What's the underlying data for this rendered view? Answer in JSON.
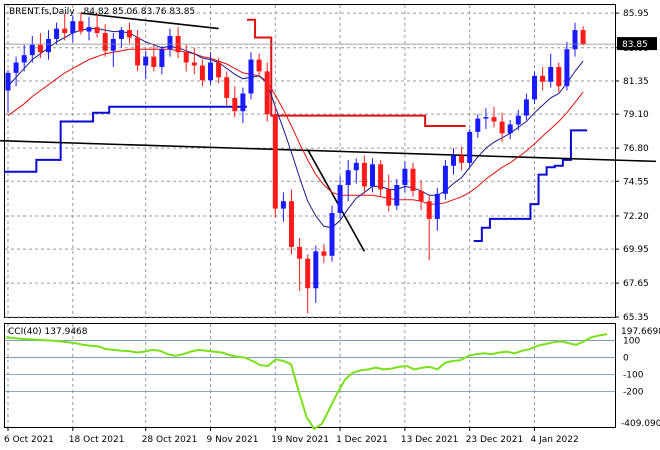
{
  "header": {
    "symbol": "BRENT.fs,Daily",
    "ohlc": "84.82 85.06 83.76 83.85"
  },
  "indicator": {
    "label": "CCI(40) 137.9468",
    "max_label": "197.6698",
    "min_label": "-409.090"
  },
  "colors": {
    "bull": "#1a1aff",
    "bear": "#ff1a1a",
    "ma_fast": "#1a1a8c",
    "ma_slow": "#e01010",
    "stop": "#0a0ad0",
    "cci": "#7ae01a",
    "trend": "#000000",
    "price_marker": "#000000"
  },
  "chart_data": [
    {
      "type": "candlestick",
      "x_labels": [
        "6 Oct 2021",
        "18 Oct 2021",
        "28 Oct 2021",
        "9 Nov 2021",
        "19 Nov 2021",
        "1 Dec 2021",
        "13 Dec 2021",
        "23 Dec 2021",
        "4 Jan 2022"
      ],
      "y_ticks": [
        "85.95",
        "83.60",
        "81.35",
        "79.10",
        "76.80",
        "74.55",
        "72.20",
        "69.95",
        "67.65",
        "65.35"
      ],
      "ylim": [
        65.35,
        86.5
      ],
      "current_price": "83.85",
      "candles": [
        {
          "o": 80.7,
          "h": 82.1,
          "l": 79.2,
          "c": 81.9
        },
        {
          "o": 81.9,
          "h": 83.0,
          "l": 81.0,
          "c": 82.6
        },
        {
          "o": 82.6,
          "h": 83.8,
          "l": 82.0,
          "c": 83.1
        },
        {
          "o": 83.1,
          "h": 84.4,
          "l": 82.6,
          "c": 83.8
        },
        {
          "o": 83.8,
          "h": 84.6,
          "l": 82.9,
          "c": 83.3
        },
        {
          "o": 83.3,
          "h": 84.8,
          "l": 82.8,
          "c": 84.2
        },
        {
          "o": 84.2,
          "h": 85.3,
          "l": 83.8,
          "c": 84.9
        },
        {
          "o": 84.9,
          "h": 85.9,
          "l": 84.1,
          "c": 84.6
        },
        {
          "o": 84.6,
          "h": 85.8,
          "l": 84.0,
          "c": 85.4
        },
        {
          "o": 85.4,
          "h": 86.0,
          "l": 84.5,
          "c": 84.7
        },
        {
          "o": 84.7,
          "h": 85.7,
          "l": 84.1,
          "c": 85.0
        },
        {
          "o": 85.0,
          "h": 85.9,
          "l": 84.3,
          "c": 84.6
        },
        {
          "o": 84.6,
          "h": 85.2,
          "l": 83.0,
          "c": 83.4
        },
        {
          "o": 83.4,
          "h": 84.6,
          "l": 82.3,
          "c": 84.2
        },
        {
          "o": 84.2,
          "h": 85.0,
          "l": 83.6,
          "c": 84.8
        },
        {
          "o": 84.8,
          "h": 85.3,
          "l": 83.9,
          "c": 84.3
        },
        {
          "o": 84.3,
          "h": 84.8,
          "l": 82.0,
          "c": 82.4
        },
        {
          "o": 82.4,
          "h": 83.4,
          "l": 81.5,
          "c": 83.0
        },
        {
          "o": 83.0,
          "h": 83.8,
          "l": 82.0,
          "c": 82.3
        },
        {
          "o": 82.3,
          "h": 83.7,
          "l": 81.8,
          "c": 83.5
        },
        {
          "o": 83.5,
          "h": 84.9,
          "l": 83.0,
          "c": 84.4
        },
        {
          "o": 84.4,
          "h": 85.0,
          "l": 82.9,
          "c": 83.3
        },
        {
          "o": 83.3,
          "h": 83.8,
          "l": 82.0,
          "c": 82.6
        },
        {
          "o": 82.6,
          "h": 83.6,
          "l": 81.8,
          "c": 82.4
        },
        {
          "o": 82.4,
          "h": 82.8,
          "l": 81.0,
          "c": 81.4
        },
        {
          "o": 81.4,
          "h": 83.3,
          "l": 81.1,
          "c": 82.6
        },
        {
          "o": 82.6,
          "h": 82.9,
          "l": 81.2,
          "c": 81.6
        },
        {
          "o": 81.6,
          "h": 82.0,
          "l": 79.7,
          "c": 80.2
        },
        {
          "o": 80.2,
          "h": 81.0,
          "l": 78.9,
          "c": 79.3
        },
        {
          "o": 79.3,
          "h": 80.9,
          "l": 78.5,
          "c": 80.5
        },
        {
          "o": 80.5,
          "h": 83.3,
          "l": 80.1,
          "c": 82.8
        },
        {
          "o": 82.8,
          "h": 83.2,
          "l": 81.6,
          "c": 82.0
        },
        {
          "o": 82.0,
          "h": 82.6,
          "l": 78.6,
          "c": 79.1
        },
        {
          "o": 79.1,
          "h": 79.6,
          "l": 72.1,
          "c": 72.7
        },
        {
          "o": 72.7,
          "h": 73.8,
          "l": 71.8,
          "c": 73.2
        },
        {
          "o": 73.2,
          "h": 74.0,
          "l": 69.6,
          "c": 70.1
        },
        {
          "o": 70.1,
          "h": 70.7,
          "l": 67.1,
          "c": 69.3
        },
        {
          "o": 69.3,
          "h": 69.6,
          "l": 65.6,
          "c": 67.3
        },
        {
          "o": 67.3,
          "h": 70.2,
          "l": 66.3,
          "c": 69.8
        },
        {
          "o": 69.8,
          "h": 70.3,
          "l": 69.0,
          "c": 69.5
        },
        {
          "o": 69.5,
          "h": 72.9,
          "l": 69.1,
          "c": 72.4
        },
        {
          "o": 72.4,
          "h": 74.9,
          "l": 72.0,
          "c": 74.3
        },
        {
          "o": 74.3,
          "h": 76.0,
          "l": 73.2,
          "c": 75.3
        },
        {
          "o": 75.3,
          "h": 76.1,
          "l": 74.4,
          "c": 75.8
        },
        {
          "o": 75.8,
          "h": 76.3,
          "l": 73.7,
          "c": 74.2
        },
        {
          "o": 74.2,
          "h": 76.1,
          "l": 73.8,
          "c": 75.7
        },
        {
          "o": 75.7,
          "h": 76.0,
          "l": 73.5,
          "c": 74.0
        },
        {
          "o": 74.0,
          "h": 75.0,
          "l": 72.5,
          "c": 72.9
        },
        {
          "o": 72.9,
          "h": 74.7,
          "l": 72.6,
          "c": 74.3
        },
        {
          "o": 74.3,
          "h": 75.9,
          "l": 73.8,
          "c": 75.4
        },
        {
          "o": 75.4,
          "h": 75.8,
          "l": 73.5,
          "c": 73.9
        },
        {
          "o": 73.9,
          "h": 74.6,
          "l": 72.6,
          "c": 73.2
        },
        {
          "o": 73.2,
          "h": 73.6,
          "l": 69.2,
          "c": 72.0
        },
        {
          "o": 72.0,
          "h": 74.1,
          "l": 71.2,
          "c": 73.7
        },
        {
          "o": 73.7,
          "h": 76.0,
          "l": 73.3,
          "c": 75.6
        },
        {
          "o": 75.6,
          "h": 76.8,
          "l": 75.0,
          "c": 76.3
        },
        {
          "o": 76.3,
          "h": 76.9,
          "l": 75.3,
          "c": 75.8
        },
        {
          "o": 75.8,
          "h": 78.1,
          "l": 75.5,
          "c": 77.9
        },
        {
          "o": 77.9,
          "h": 79.1,
          "l": 77.5,
          "c": 78.8
        },
        {
          "o": 78.8,
          "h": 79.5,
          "l": 78.1,
          "c": 78.9
        },
        {
          "o": 78.9,
          "h": 79.6,
          "l": 78.2,
          "c": 78.6
        },
        {
          "o": 78.6,
          "h": 79.2,
          "l": 77.2,
          "c": 77.8
        },
        {
          "o": 77.8,
          "h": 78.7,
          "l": 77.4,
          "c": 78.4
        },
        {
          "o": 78.4,
          "h": 79.4,
          "l": 78.0,
          "c": 79.0
        },
        {
          "o": 79.0,
          "h": 80.5,
          "l": 78.7,
          "c": 80.1
        },
        {
          "o": 80.1,
          "h": 82.0,
          "l": 79.8,
          "c": 81.7
        },
        {
          "o": 81.7,
          "h": 82.3,
          "l": 80.7,
          "c": 81.3
        },
        {
          "o": 81.3,
          "h": 83.2,
          "l": 80.9,
          "c": 82.3
        },
        {
          "o": 82.3,
          "h": 82.6,
          "l": 80.6,
          "c": 81.0
        },
        {
          "o": 81.0,
          "h": 84.0,
          "l": 80.7,
          "c": 83.5
        },
        {
          "o": 83.5,
          "h": 85.3,
          "l": 83.0,
          "c": 84.8
        },
        {
          "o": 84.8,
          "h": 85.06,
          "l": 83.76,
          "c": 83.85
        }
      ],
      "ma_fast": [
        81.0,
        81.6,
        82.2,
        82.8,
        83.2,
        83.6,
        84.0,
        84.3,
        84.6,
        84.8,
        84.9,
        84.9,
        84.8,
        84.7,
        84.7,
        84.6,
        84.3,
        84.0,
        83.8,
        83.6,
        83.7,
        83.6,
        83.4,
        83.2,
        82.9,
        82.8,
        82.6,
        82.2,
        81.8,
        81.5,
        81.6,
        81.7,
        81.2,
        79.6,
        78.1,
        76.5,
        74.8,
        73.2,
        72.2,
        71.5,
        71.4,
        71.9,
        72.7,
        73.4,
        73.8,
        74.2,
        74.2,
        74.0,
        74.0,
        74.2,
        74.1,
        73.9,
        73.6,
        73.6,
        73.9,
        74.4,
        74.8,
        75.5,
        76.2,
        76.8,
        77.2,
        77.5,
        77.8,
        78.2,
        78.6,
        79.2,
        79.7,
        80.2,
        80.5,
        81.2,
        82.0,
        82.7
      ],
      "ma_slow": [
        79.0,
        79.4,
        79.8,
        80.3,
        80.7,
        81.1,
        81.5,
        81.9,
        82.2,
        82.5,
        82.8,
        83.0,
        83.2,
        83.3,
        83.4,
        83.5,
        83.5,
        83.5,
        83.5,
        83.5,
        83.5,
        83.4,
        83.3,
        83.2,
        83.0,
        82.9,
        82.7,
        82.5,
        82.2,
        81.9,
        81.8,
        81.7,
        81.3,
        80.4,
        79.4,
        78.3,
        77.1,
        76.0,
        75.0,
        74.3,
        73.8,
        73.6,
        73.6,
        73.6,
        73.6,
        73.6,
        73.5,
        73.4,
        73.3,
        73.3,
        73.3,
        73.2,
        73.0,
        73.0,
        73.1,
        73.3,
        73.5,
        73.8,
        74.2,
        74.7,
        75.1,
        75.5,
        75.8,
        76.2,
        76.6,
        77.1,
        77.6,
        78.1,
        78.6,
        79.2,
        79.9,
        80.6
      ],
      "stop_upper": [
        {
          "i": 29,
          "v": null
        },
        {
          "i": 30,
          "v": 85.5
        },
        {
          "i": 31,
          "v": 84.3
        },
        {
          "i": 32,
          "v": 84.3
        },
        {
          "i": 33,
          "v": 79.0
        },
        {
          "i": 34,
          "v": 79.0
        },
        {
          "i": 35,
          "v": 79.0
        },
        {
          "i": 36,
          "v": 79.0
        },
        {
          "i": 37,
          "v": 79.0
        },
        {
          "i": 38,
          "v": 79.0
        },
        {
          "i": 39,
          "v": 79.0
        },
        {
          "i": 40,
          "v": 79.0
        },
        {
          "i": 41,
          "v": 79.0
        },
        {
          "i": 42,
          "v": 79.0
        },
        {
          "i": 43,
          "v": 79.0
        },
        {
          "i": 44,
          "v": 79.0
        },
        {
          "i": 45,
          "v": 79.0
        },
        {
          "i": 46,
          "v": 79.0
        },
        {
          "i": 47,
          "v": 79.0
        },
        {
          "i": 48,
          "v": 79.0
        },
        {
          "i": 49,
          "v": 79.0
        },
        {
          "i": 50,
          "v": 79.0
        },
        {
          "i": 51,
          "v": 79.0
        },
        {
          "i": 52,
          "v": 78.3
        },
        {
          "i": 53,
          "v": 78.3
        },
        {
          "i": 54,
          "v": 78.3
        },
        {
          "i": 55,
          "v": 78.3
        },
        {
          "i": 56,
          "v": 78.3
        }
      ],
      "stop_lower": [
        {
          "i": 0,
          "v": 75.2
        },
        {
          "i": 1,
          "v": 75.2
        },
        {
          "i": 2,
          "v": 75.2
        },
        {
          "i": 3,
          "v": 75.2
        },
        {
          "i": 4,
          "v": 76.0
        },
        {
          "i": 5,
          "v": 76.0
        },
        {
          "i": 6,
          "v": 76.0
        },
        {
          "i": 7,
          "v": 78.6
        },
        {
          "i": 8,
          "v": 78.6
        },
        {
          "i": 9,
          "v": 78.6
        },
        {
          "i": 10,
          "v": 78.6
        },
        {
          "i": 11,
          "v": 79.2
        },
        {
          "i": 12,
          "v": 79.2
        },
        {
          "i": 13,
          "v": 79.6
        },
        {
          "i": 14,
          "v": 79.6
        },
        {
          "i": 15,
          "v": 79.6
        },
        {
          "i": 16,
          "v": 79.6
        },
        {
          "i": 17,
          "v": 79.6
        },
        {
          "i": 18,
          "v": 79.6
        },
        {
          "i": 19,
          "v": 79.6
        },
        {
          "i": 20,
          "v": 79.6
        },
        {
          "i": 21,
          "v": 79.6
        },
        {
          "i": 22,
          "v": 79.6
        },
        {
          "i": 23,
          "v": 79.6
        },
        {
          "i": 24,
          "v": 79.6
        },
        {
          "i": 25,
          "v": 79.6
        },
        {
          "i": 26,
          "v": 79.6
        },
        {
          "i": 27,
          "v": 79.6
        },
        {
          "i": 28,
          "v": 79.6
        },
        {
          "i": 29,
          "v": 79.6
        },
        {
          "i": 57,
          "v": null
        },
        {
          "i": 58,
          "v": 70.5
        },
        {
          "i": 59,
          "v": 71.4
        },
        {
          "i": 60,
          "v": 72.0
        },
        {
          "i": 61,
          "v": 72.0
        },
        {
          "i": 62,
          "v": 72.0
        },
        {
          "i": 63,
          "v": 72.0
        },
        {
          "i": 64,
          "v": 72.0
        },
        {
          "i": 65,
          "v": 73.0
        },
        {
          "i": 66,
          "v": 75.0
        },
        {
          "i": 67,
          "v": 75.5
        },
        {
          "i": 68,
          "v": 75.6
        },
        {
          "i": 69,
          "v": 76.0
        },
        {
          "i": 70,
          "v": 78.0
        },
        {
          "i": 71,
          "v": 78.0
        }
      ],
      "trendlines": [
        {
          "from": {
            "i": 9,
            "v": 85.95
          },
          "to": {
            "i": 26,
            "v": 84.9
          }
        },
        {
          "from": {
            "i": -1,
            "v": 77.3
          },
          "to": {
            "i": 80,
            "v": 75.9
          }
        },
        {
          "from": {
            "i": 37,
            "v": 76.7
          },
          "to": {
            "i": 44,
            "v": 69.8
          }
        }
      ]
    },
    {
      "type": "line",
      "name": "CCI(40)",
      "y_ticks": [
        "100",
        "0",
        "-100",
        "-200"
      ],
      "ylim": [
        -409.09,
        197.6698
      ],
      "values": [
        120,
        115,
        110,
        108,
        105,
        102,
        100,
        95,
        90,
        85,
        75,
        70,
        65,
        50,
        45,
        40,
        38,
        30,
        35,
        45,
        40,
        20,
        10,
        20,
        35,
        45,
        40,
        35,
        30,
        15,
        5,
        0,
        -20,
        -45,
        -50,
        -10,
        -20,
        -40,
        -200,
        -350,
        -420,
        -390,
        -300,
        -210,
        -130,
        -90,
        -75,
        -70,
        -60,
        -70,
        -65,
        -55,
        -50,
        -70,
        -60,
        -55,
        -70,
        -30,
        -20,
        -15,
        10,
        20,
        25,
        20,
        30,
        35,
        25,
        40,
        50,
        70,
        80,
        90,
        95,
        85,
        75,
        95,
        120,
        130,
        138
      ]
    }
  ]
}
